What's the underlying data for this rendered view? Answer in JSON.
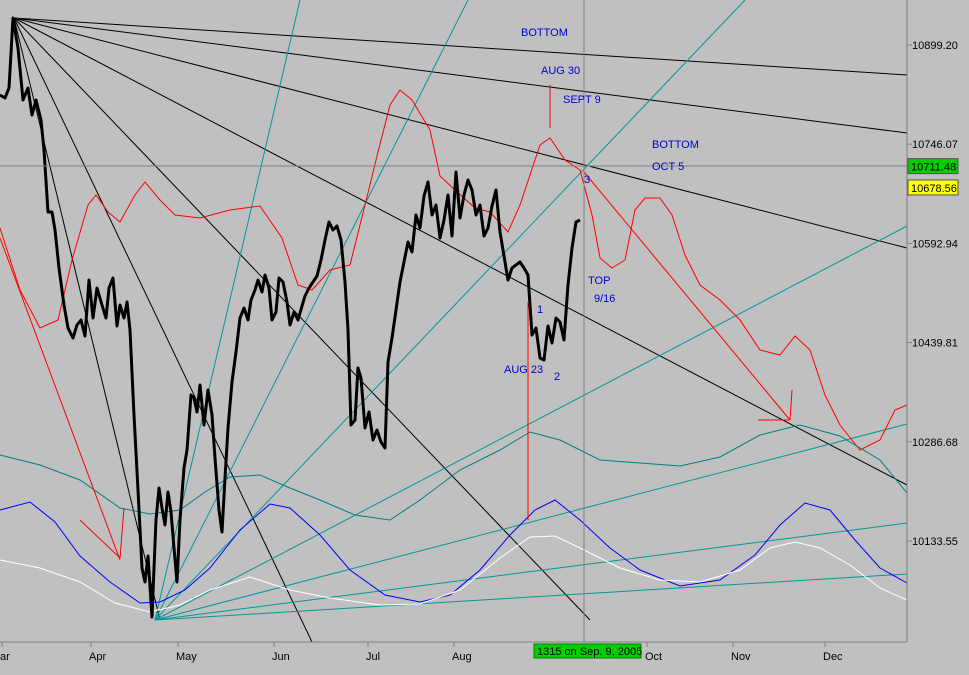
{
  "chart_data": {
    "type": "line",
    "y_ticks": [
      10899.2,
      10746.07,
      10592.94,
      10439.81,
      10286.68,
      10133.55
    ],
    "x_tick_labels": [
      "ar",
      "Apr",
      "May",
      "Jun",
      "Jul",
      "Aug",
      "Oct",
      "Nov",
      "Dec"
    ],
    "price_badges": [
      {
        "text": "10711.48",
        "value": 10711.48,
        "color": "#00d000"
      },
      {
        "text": "10678.56",
        "value": 10678.56,
        "color": "#ffff00"
      }
    ],
    "crosshair_value": 10711.48,
    "crosshair_caption": "1315 on Sep. 9, 2005",
    "annotations": [
      {
        "text": "BOTTOM",
        "color": "#0000cc"
      },
      {
        "text": "AUG 30",
        "color": "#0000cc"
      },
      {
        "text": "SEPT 9",
        "color": "#0000cc"
      },
      {
        "text": "BOTTOM",
        "color": "#0000cc"
      },
      {
        "text": "OCT 5",
        "color": "#0000cc"
      },
      {
        "text": "3",
        "color": "#0000cc"
      },
      {
        "text": "TOP",
        "color": "#0000cc"
      },
      {
        "text": "9/16",
        "color": "#0000cc"
      },
      {
        "text": "1",
        "color": "#0000cc"
      },
      {
        "text": "AUG 23",
        "color": "#0000cc"
      },
      {
        "text": "2",
        "color": "#0000cc"
      }
    ],
    "colors": {
      "background": "#c0c0c0",
      "price": "#000000",
      "red_cycle": "#ff0000",
      "teal_cycle": "#008080",
      "blue_cycle": "#0000ff",
      "white_cycle": "#ffffff",
      "fan_black": "#000000",
      "fan_teal": "#009999",
      "crosshair": "#808080"
    },
    "grid": false
  }
}
